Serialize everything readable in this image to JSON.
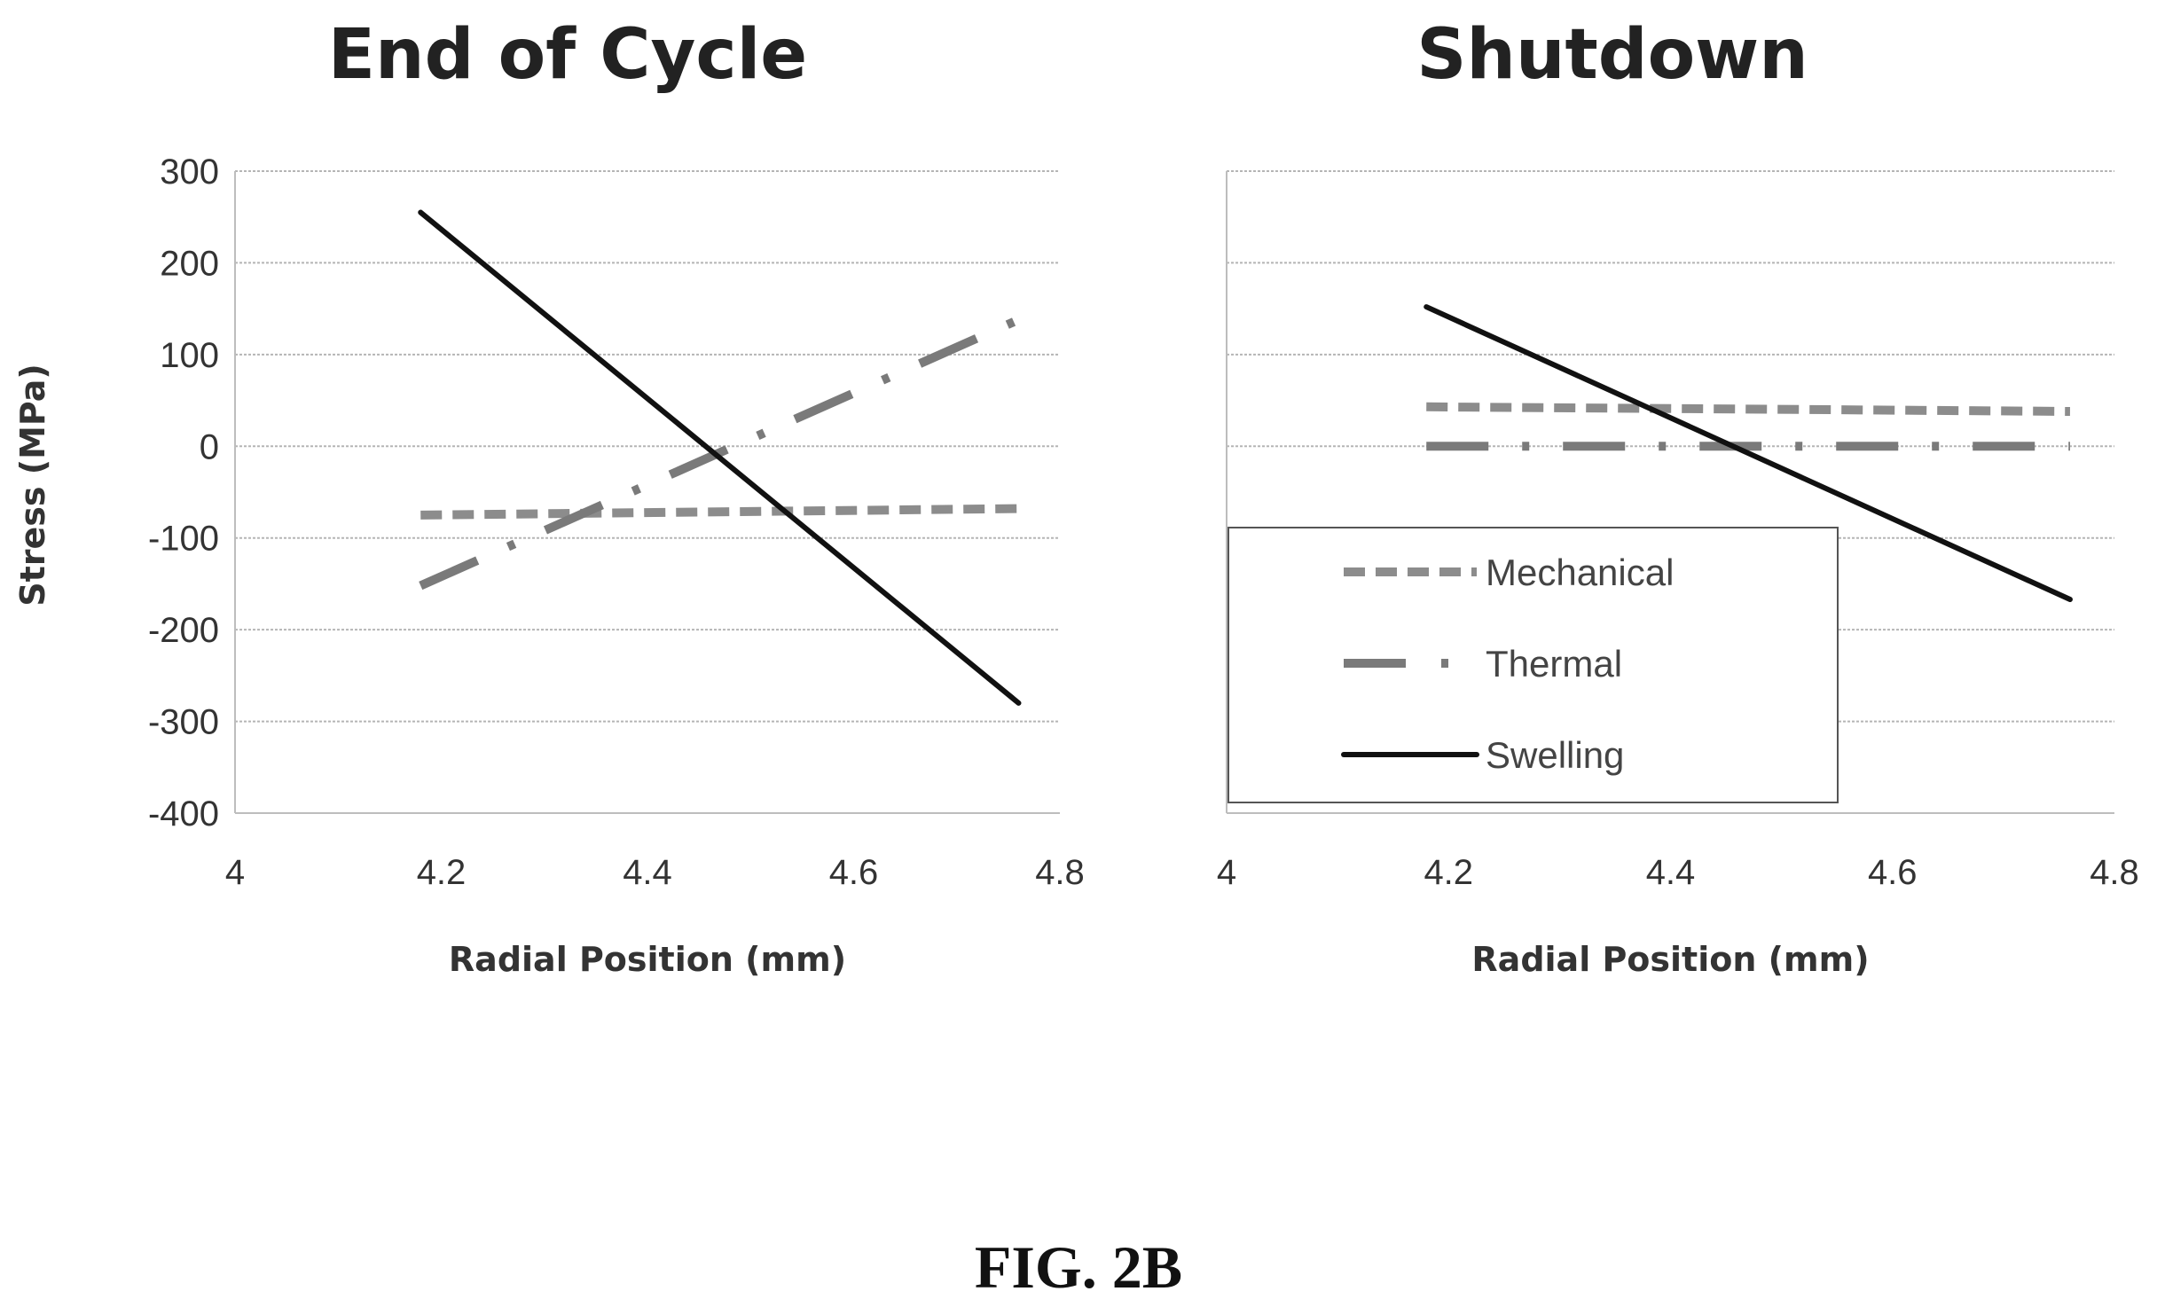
{
  "figure_caption": "FIG. 2B",
  "colors": {
    "mechanical": "#8c8c8c",
    "thermal": "#7a7a7a",
    "swelling": "#111111",
    "grid": "#b5b5b5",
    "legend_border": "#555555"
  },
  "chart_data": [
    {
      "type": "line",
      "title": "End of Cycle",
      "xlabel": "Radial Position  (mm)",
      "ylabel": "Stress (MPa)",
      "xlim": [
        4,
        4.8
      ],
      "ylim": [
        -400,
        300
      ],
      "x_ticks": [
        "4",
        "4.2",
        "4.4",
        "4.6",
        "4.8"
      ],
      "y_ticks": [
        "300",
        "200",
        "100",
        "0",
        "-100",
        "-200",
        "-300",
        "-400"
      ],
      "grid": true,
      "legend": null,
      "series": [
        {
          "name": "Mechanical",
          "style": "dashed",
          "color": "#8c8c8c",
          "x": [
            4.18,
            4.76
          ],
          "y": [
            -75,
            -68
          ]
        },
        {
          "name": "Thermal",
          "style": "dash-dot",
          "color": "#7a7a7a",
          "x": [
            4.18,
            4.76
          ],
          "y": [
            -152,
            138
          ]
        },
        {
          "name": "Swelling",
          "style": "solid",
          "color": "#111111",
          "x": [
            4.18,
            4.76
          ],
          "y": [
            255,
            -280
          ]
        }
      ]
    },
    {
      "type": "line",
      "title": "Shutdown",
      "xlabel": "Radial Position  (mm)",
      "ylabel": "",
      "xlim": [
        4,
        4.8
      ],
      "ylim": [
        -400,
        300
      ],
      "x_ticks": [
        "4",
        "4.2",
        "4.4",
        "4.6",
        "4.8"
      ],
      "y_ticks": [],
      "grid": true,
      "legend": {
        "placement": "lower-left",
        "entries": [
          {
            "label": "Mechanical",
            "style": "dashed",
            "color": "#8c8c8c"
          },
          {
            "label": "Thermal",
            "style": "dash-dot",
            "color": "#7a7a7a"
          },
          {
            "label": "Swelling",
            "style": "solid",
            "color": "#111111"
          }
        ]
      },
      "series": [
        {
          "name": "Mechanical",
          "style": "dashed",
          "color": "#8c8c8c",
          "x": [
            4.18,
            4.76
          ],
          "y": [
            43,
            38
          ]
        },
        {
          "name": "Thermal",
          "style": "dash-dot",
          "color": "#7a7a7a",
          "x": [
            4.18,
            4.76
          ],
          "y": [
            0,
            0
          ]
        },
        {
          "name": "Swelling",
          "style": "solid",
          "color": "#111111",
          "x": [
            4.18,
            4.76
          ],
          "y": [
            152,
            -167
          ]
        }
      ]
    }
  ]
}
